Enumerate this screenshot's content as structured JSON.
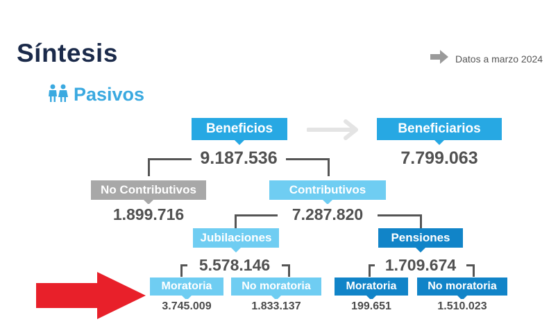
{
  "header": {
    "title": "Síntesis",
    "subtitle": "Pasivos",
    "date_note": "Datos a marzo 2024",
    "icons": {
      "people": "people-icon",
      "arrow": "arrow-right-icon",
      "pointer": "red-arrow-icon"
    }
  },
  "colors": {
    "title": "#1b2a4a",
    "accent": "#3aa9e0",
    "box_blue": "#27a8e3",
    "box_light": "#6fcdf2",
    "box_dark": "#1184c8",
    "box_gray": "#a8a8a8",
    "number": "#505050",
    "pointer": "#e8202a"
  },
  "tree": {
    "beneficios": {
      "label": "Beneficios",
      "value": "9.187.536"
    },
    "beneficiarios": {
      "label": "Beneficiarios",
      "value": "7.799.063"
    },
    "no_contributivos": {
      "label": "No Contributivos",
      "value": "1.899.716"
    },
    "contributivos": {
      "label": "Contributivos",
      "value": "7.287.820"
    },
    "jubilaciones": {
      "label": "Jubilaciones",
      "value": "5.578.146"
    },
    "pensiones": {
      "label": "Pensiones",
      "value": "1.709.674"
    },
    "jub_moratoria": {
      "label": "Moratoria",
      "value": "3.745.009"
    },
    "jub_no_moratoria": {
      "label": "No moratoria",
      "value": "1.833.137"
    },
    "pen_moratoria": {
      "label": "Moratoria",
      "value": "199.651"
    },
    "pen_no_moratoria": {
      "label": "No moratoria",
      "value": "1.510.023"
    }
  }
}
